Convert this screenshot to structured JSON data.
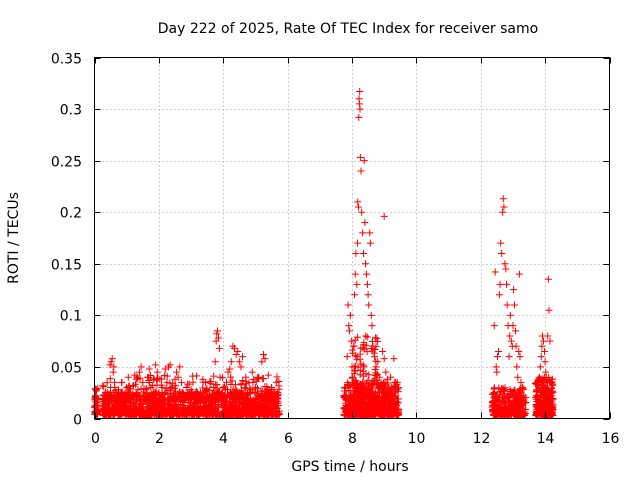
{
  "chart_data": {
    "type": "scatter",
    "title": "Day 222 of 2025, Rate Of TEC Index for receiver samo",
    "xlabel": "GPS time / hours",
    "ylabel": "ROTI / TECUs",
    "xlim": [
      0,
      16
    ],
    "ylim": [
      0,
      0.35
    ],
    "xticks": [
      0,
      2,
      4,
      6,
      8,
      10,
      12,
      14,
      16
    ],
    "xtick_labels": [
      "0",
      "2",
      "4",
      "6",
      "8",
      "10",
      "12",
      "14",
      "16"
    ],
    "yticks": [
      0,
      0.05,
      0.1,
      0.15,
      0.2,
      0.25,
      0.3,
      0.35
    ],
    "ytick_labels": [
      "0",
      "0.05",
      "0.1",
      "0.15",
      "0.2",
      "0.25",
      "0.3",
      "0.35"
    ],
    "grid": true,
    "marker": "+",
    "color": "#ff0000",
    "series": [
      {
        "name": "ROTI",
        "points": [
          [
            0.02,
            0.012
          ],
          [
            0.03,
            0.022
          ],
          [
            0.05,
            0.028
          ],
          [
            0.06,
            0.015
          ],
          [
            0.08,
            0.009
          ],
          [
            0.1,
            0.018
          ],
          [
            0.3,
            0.01
          ],
          [
            0.35,
            0.02
          ],
          [
            0.4,
            0.025
          ],
          [
            0.45,
            0.015
          ],
          [
            0.5,
            0.03
          ],
          [
            0.48,
            0.052
          ],
          [
            0.52,
            0.055
          ],
          [
            0.55,
            0.058
          ],
          [
            0.6,
            0.05
          ],
          [
            0.58,
            0.045
          ],
          [
            0.62,
            0.035
          ],
          [
            0.65,
            0.02
          ],
          [
            0.7,
            0.012
          ],
          [
            0.75,
            0.028
          ],
          [
            0.8,
            0.018
          ],
          [
            0.85,
            0.035
          ],
          [
            0.9,
            0.022
          ],
          [
            0.95,
            0.015
          ],
          [
            1.0,
            0.03
          ],
          [
            1.05,
            0.04
          ],
          [
            1.1,
            0.025
          ],
          [
            1.15,
            0.018
          ],
          [
            1.2,
            0.032
          ],
          [
            1.25,
            0.042
          ],
          [
            1.3,
            0.038
          ],
          [
            1.35,
            0.028
          ],
          [
            1.4,
            0.045
          ],
          [
            1.45,
            0.05
          ],
          [
            1.5,
            0.035
          ],
          [
            1.55,
            0.02
          ],
          [
            1.6,
            0.028
          ],
          [
            1.65,
            0.04
          ],
          [
            1.7,
            0.048
          ],
          [
            1.75,
            0.03
          ],
          [
            1.8,
            0.022
          ],
          [
            1.85,
            0.038
          ],
          [
            1.9,
            0.052
          ],
          [
            1.95,
            0.045
          ],
          [
            2.0,
            0.025
          ],
          [
            2.05,
            0.015
          ],
          [
            2.1,
            0.03
          ],
          [
            2.15,
            0.02
          ],
          [
            2.2,
            0.048
          ],
          [
            2.25,
            0.035
          ],
          [
            2.3,
            0.05
          ],
          [
            2.35,
            0.052
          ],
          [
            2.4,
            0.03
          ],
          [
            2.45,
            0.022
          ],
          [
            2.5,
            0.038
          ],
          [
            2.55,
            0.045
          ],
          [
            2.6,
            0.04
          ],
          [
            2.65,
            0.05
          ],
          [
            2.7,
            0.035
          ],
          [
            2.75,
            0.025
          ],
          [
            2.8,
            0.018
          ],
          [
            2.85,
            0.03
          ],
          [
            2.9,
            0.02
          ],
          [
            2.95,
            0.025
          ],
          [
            3.0,
            0.028
          ],
          [
            3.1,
            0.02
          ],
          [
            3.2,
            0.025
          ],
          [
            3.3,
            0.018
          ],
          [
            3.4,
            0.022
          ],
          [
            3.5,
            0.028
          ],
          [
            3.6,
            0.02
          ],
          [
            3.7,
            0.03
          ],
          [
            3.75,
            0.055
          ],
          [
            3.78,
            0.075
          ],
          [
            3.8,
            0.082
          ],
          [
            3.82,
            0.085
          ],
          [
            3.85,
            0.078
          ],
          [
            3.88,
            0.068
          ],
          [
            3.9,
            0.04
          ],
          [
            3.95,
            0.025
          ],
          [
            4.0,
            0.03
          ],
          [
            4.05,
            0.02
          ],
          [
            4.1,
            0.035
          ],
          [
            4.15,
            0.045
          ],
          [
            4.2,
            0.048
          ],
          [
            4.25,
            0.055
          ],
          [
            4.3,
            0.07
          ],
          [
            4.35,
            0.068
          ],
          [
            4.4,
            0.062
          ],
          [
            4.45,
            0.065
          ],
          [
            4.5,
            0.055
          ],
          [
            4.55,
            0.05
          ],
          [
            4.6,
            0.06
          ],
          [
            4.7,
            0.04
          ],
          [
            4.8,
            0.035
          ],
          [
            4.9,
            0.045
          ],
          [
            5.0,
            0.03
          ],
          [
            5.1,
            0.04
          ],
          [
            5.2,
            0.055
          ],
          [
            5.25,
            0.062
          ],
          [
            5.3,
            0.058
          ],
          [
            5.4,
            0.042
          ],
          [
            5.5,
            0.03
          ],
          [
            5.6,
            0.025
          ],
          [
            5.65,
            0.035
          ],
          [
            5.7,
            0.02
          ],
          [
            7.8,
            0.03
          ],
          [
            7.85,
            0.06
          ],
          [
            7.88,
            0.11
          ],
          [
            7.9,
            0.09
          ],
          [
            7.92,
            0.085
          ],
          [
            7.95,
            0.1
          ],
          [
            7.98,
            0.075
          ],
          [
            8.0,
            0.05
          ],
          [
            8.02,
            0.04
          ],
          [
            8.05,
            0.07
          ],
          [
            8.08,
            0.12
          ],
          [
            8.1,
            0.14
          ],
          [
            8.12,
            0.16
          ],
          [
            8.15,
            0.13
          ],
          [
            8.17,
            0.17
          ],
          [
            8.18,
            0.21
          ],
          [
            8.2,
            0.205
          ],
          [
            8.22,
            0.31
          ],
          [
            8.24,
            0.317
          ],
          [
            8.25,
            0.3
          ],
          [
            8.23,
            0.305
          ],
          [
            8.21,
            0.292
          ],
          [
            8.26,
            0.253
          ],
          [
            8.28,
            0.24
          ],
          [
            8.3,
            0.2
          ],
          [
            8.33,
            0.18
          ],
          [
            8.36,
            0.16
          ],
          [
            8.38,
            0.25
          ],
          [
            8.4,
            0.19
          ],
          [
            8.42,
            0.15
          ],
          [
            8.45,
            0.14
          ],
          [
            8.48,
            0.13
          ],
          [
            8.5,
            0.12
          ],
          [
            8.52,
            0.11
          ],
          [
            8.55,
            0.18
          ],
          [
            8.57,
            0.17
          ],
          [
            8.6,
            0.1
          ],
          [
            8.62,
            0.09
          ],
          [
            8.65,
            0.07
          ],
          [
            8.7,
            0.06
          ],
          [
            8.75,
            0.05
          ],
          [
            8.8,
            0.055
          ],
          [
            8.85,
            0.04
          ],
          [
            8.9,
            0.035
          ],
          [
            8.95,
            0.065
          ],
          [
            9.0,
            0.058
          ],
          [
            9.05,
            0.045
          ],
          [
            9.1,
            0.038
          ],
          [
            9.15,
            0.03
          ],
          [
            9.2,
            0.04
          ],
          [
            9.25,
            0.025
          ],
          [
            9.3,
            0.058
          ],
          [
            9.35,
            0.035
          ],
          [
            9.4,
            0.028
          ],
          [
            9.0,
            0.196
          ],
          [
            12.4,
            0.02
          ],
          [
            12.42,
            0.09
          ],
          [
            12.45,
            0.142
          ],
          [
            12.48,
            0.05
          ],
          [
            12.5,
            0.045
          ],
          [
            12.52,
            0.06
          ],
          [
            12.55,
            0.065
          ],
          [
            12.58,
            0.12
          ],
          [
            12.6,
            0.13
          ],
          [
            12.62,
            0.17
          ],
          [
            12.65,
            0.16
          ],
          [
            12.68,
            0.2
          ],
          [
            12.7,
            0.213
          ],
          [
            12.72,
            0.205
          ],
          [
            12.75,
            0.15
          ],
          [
            12.78,
            0.145
          ],
          [
            12.8,
            0.13
          ],
          [
            12.82,
            0.11
          ],
          [
            12.85,
            0.09
          ],
          [
            12.88,
            0.06
          ],
          [
            12.9,
            0.08
          ],
          [
            12.92,
            0.1
          ],
          [
            12.95,
            0.075
          ],
          [
            12.98,
            0.07
          ],
          [
            13.0,
            0.09
          ],
          [
            13.02,
            0.125
          ],
          [
            13.05,
            0.11
          ],
          [
            13.08,
            0.085
          ],
          [
            13.1,
            0.07
          ],
          [
            13.12,
            0.05
          ],
          [
            13.15,
            0.04
          ],
          [
            13.18,
            0.065
          ],
          [
            13.2,
            0.14
          ],
          [
            13.22,
            0.06
          ],
          [
            13.25,
            0.035
          ],
          [
            13.3,
            0.03
          ],
          [
            13.35,
            0.02
          ],
          [
            13.8,
            0.03
          ],
          [
            13.82,
            0.04
          ],
          [
            13.85,
            0.05
          ],
          [
            13.88,
            0.06
          ],
          [
            13.9,
            0.07
          ],
          [
            13.92,
            0.08
          ],
          [
            13.95,
            0.075
          ],
          [
            13.98,
            0.065
          ],
          [
            14.0,
            0.055
          ],
          [
            14.02,
            0.045
          ],
          [
            14.05,
            0.035
          ],
          [
            14.08,
            0.08
          ],
          [
            14.1,
            0.135
          ],
          [
            14.12,
            0.105
          ],
          [
            14.15,
            0.075
          ],
          [
            14.18,
            0.035
          ],
          [
            14.2,
            0.025
          ]
        ],
        "dense_bands": [
          {
            "x_range": [
              0.0,
              0.12
            ],
            "y_range": [
              0.004,
              0.03
            ],
            "count": 40
          },
          {
            "x_range": [
              0.25,
              5.75
            ],
            "y_range": [
              0.003,
              0.026
            ],
            "count": 1400
          },
          {
            "x_range": [
              0.25,
              5.75
            ],
            "y_range": [
              0.018,
              0.042
            ],
            "count": 260
          },
          {
            "x_range": [
              7.75,
              9.45
            ],
            "y_range": [
              0.003,
              0.035
            ],
            "count": 650
          },
          {
            "x_range": [
              8.0,
              8.8
            ],
            "y_range": [
              0.02,
              0.08
            ],
            "count": 120
          },
          {
            "x_range": [
              12.35,
              13.4
            ],
            "y_range": [
              0.003,
              0.03
            ],
            "count": 320
          },
          {
            "x_range": [
              13.7,
              14.25
            ],
            "y_range": [
              0.003,
              0.04
            ],
            "count": 300
          }
        ]
      }
    ]
  }
}
